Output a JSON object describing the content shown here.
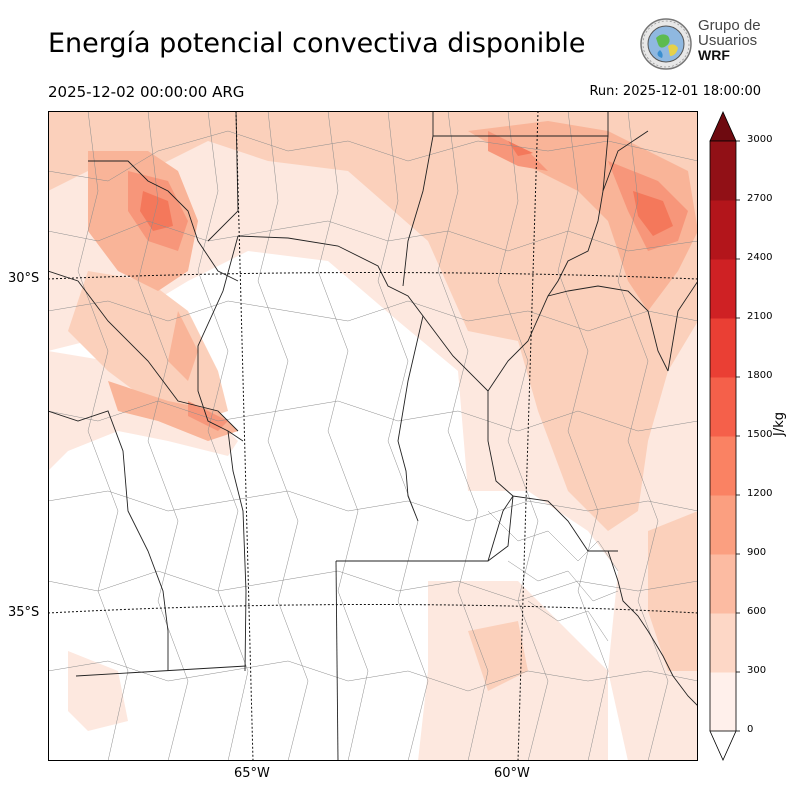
{
  "header": {
    "title": "Energía potencial convectiva disponible",
    "valid_time": "2025-12-02 00:00:00 ARG",
    "run_time": "Run: 2025-12-01 18:00:00"
  },
  "logo": {
    "line1": "Grupo de",
    "line2": "Usuarios",
    "line3": "WRF"
  },
  "map": {
    "lat_labels": [
      "30°S",
      "35°S"
    ],
    "lon_labels": [
      "65°W",
      "60°W"
    ],
    "field_colors": [
      "#fde8df",
      "#fbd0bb",
      "#f9b498",
      "#f7967a",
      "#f4785b"
    ]
  },
  "colorbar": {
    "unit": "J/kg",
    "ticks": [
      "0",
      "300",
      "600",
      "900",
      "1200",
      "1500",
      "1800",
      "2100",
      "2400",
      "2700",
      "3000"
    ],
    "colors": [
      "#fff0eb",
      "#fdd7c6",
      "#fcbba2",
      "#fb9f80",
      "#fa8263",
      "#f5604a",
      "#ea3f34",
      "#cf2124",
      "#b3151b",
      "#911016",
      "#6e0a10"
    ],
    "under_color": "#ffffff",
    "over_color": "#6e0a10"
  }
}
